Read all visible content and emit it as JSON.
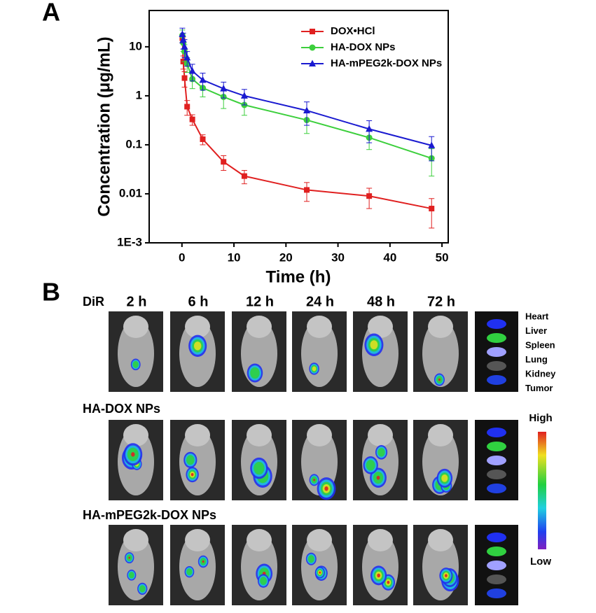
{
  "panel_a_label": "A",
  "chart_data": {
    "type": "line",
    "x_label": "Time (h)",
    "y_label": "Concentration (μg/mL)",
    "x": [
      0.083,
      0.25,
      0.5,
      1,
      2,
      4,
      8,
      12,
      24,
      36,
      48
    ],
    "series": [
      {
        "name": "DOX•HCl",
        "color": "#e02020",
        "marker": "square",
        "values": [
          15,
          5,
          2.3,
          0.6,
          0.33,
          0.13,
          0.045,
          0.023,
          0.012,
          0.009,
          0.005
        ],
        "errors": [
          3,
          1.5,
          0.8,
          0.2,
          0.08,
          0.03,
          0.015,
          0.007,
          0.005,
          0.004,
          0.003
        ]
      },
      {
        "name": "HA-DOX NPs",
        "color": "#3ccf3c",
        "marker": "circle",
        "values": [
          17,
          12,
          8,
          4.5,
          2.2,
          1.45,
          0.95,
          0.65,
          0.32,
          0.14,
          0.053
        ],
        "errors": [
          5,
          4,
          3,
          1.5,
          0.8,
          0.5,
          0.4,
          0.25,
          0.15,
          0.06,
          0.03
        ]
      },
      {
        "name": "HA-mPEG2k-DOX NPs",
        "color": "#1a1ad0",
        "marker": "triangle",
        "values": [
          18,
          14,
          10,
          6,
          3.2,
          2.1,
          1.4,
          1.0,
          0.5,
          0.21,
          0.097
        ],
        "errors": [
          6,
          5,
          4,
          2,
          1.2,
          0.8,
          0.5,
          0.35,
          0.25,
          0.1,
          0.05
        ]
      }
    ],
    "xlim": [
      -6.3,
      51.2
    ],
    "xticks": [
      0,
      10,
      20,
      30,
      40,
      50
    ],
    "ylim": [
      0.001,
      55
    ],
    "y_log": true,
    "yticks": [
      {
        "value": 0.001,
        "label": "1E-3"
      },
      0.01,
      0.1,
      1,
      10
    ],
    "legend": "upper right",
    "grid": false
  },
  "panel_b": {
    "label": "B",
    "dye": "DiR",
    "times": [
      "2 h",
      "6 h",
      "12 h",
      "24 h",
      "48 h",
      "72 h"
    ],
    "rows": [
      "HA-DOX NPs",
      "HA-mPEG2k-DOX NPs"
    ],
    "organs": [
      "Heart",
      "Liver",
      "Spleen",
      "Lung",
      "Kidney",
      "Tumor"
    ],
    "scale_high": "High",
    "scale_low": "Low"
  }
}
